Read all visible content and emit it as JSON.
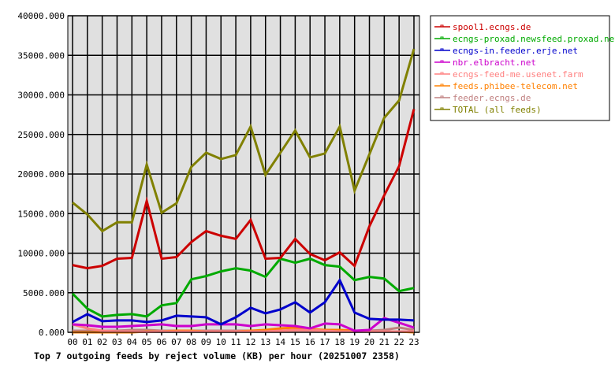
{
  "chart_data": {
    "type": "line",
    "title": "Top 7 outgoing feeds by reject volume (KB) per hour (20251007 2358)",
    "xlabel": "",
    "ylabel": "",
    "ylim": [
      0,
      40000
    ],
    "yticks": [
      "0.000",
      "5000.000",
      "10000.000",
      "15000.000",
      "20000.000",
      "25000.000",
      "30000.000",
      "35000.000",
      "40000.000"
    ],
    "grid": true,
    "legend_placement": "right",
    "categories": [
      "00",
      "01",
      "02",
      "03",
      "04",
      "05",
      "06",
      "07",
      "08",
      "09",
      "10",
      "11",
      "12",
      "13",
      "14",
      "15",
      "16",
      "17",
      "18",
      "19",
      "20",
      "21",
      "22",
      "23"
    ],
    "series": [
      {
        "name": "spool1.ecngs.de",
        "color": "#cc0000",
        "values": [
          8500,
          8100,
          8400,
          9300,
          9400,
          16600,
          9300,
          9500,
          11400,
          12800,
          12200,
          11800,
          14200,
          9300,
          9400,
          11800,
          9900,
          9100,
          10100,
          8400,
          13400,
          17300,
          21000,
          28200
        ]
      },
      {
        "name": "ecngs-proxad.newsfeed.proxad.net",
        "color": "#00aa00",
        "values": [
          4900,
          3000,
          2000,
          2200,
          2300,
          2000,
          3400,
          3700,
          6700,
          7100,
          7700,
          8100,
          7800,
          7000,
          9300,
          8800,
          9300,
          8500,
          8300,
          6600,
          7000,
          6800,
          5200,
          5600
        ]
      },
      {
        "name": "ecngs-in.feeder.erje.net",
        "color": "#0000cc",
        "values": [
          1300,
          2300,
          1400,
          1500,
          1500,
          1300,
          1500,
          2100,
          2000,
          1900,
          1000,
          1900,
          3100,
          2400,
          2900,
          3800,
          2500,
          3800,
          6600,
          2500,
          1700,
          1600,
          1600,
          1500
        ]
      },
      {
        "name": "nbr.elbracht.net",
        "color": "#cc00cc",
        "values": [
          1000,
          900,
          700,
          700,
          800,
          900,
          1000,
          800,
          800,
          1000,
          1000,
          1000,
          800,
          1000,
          900,
          800,
          500,
          1100,
          1000,
          200,
          300,
          1800,
          1200,
          600
        ]
      },
      {
        "name": "ecngs-feed-me.usenet.farm",
        "color": "#ff8080",
        "values": [
          1000,
          500,
          200,
          100,
          100,
          50,
          100,
          100,
          100,
          100,
          100,
          100,
          100,
          100,
          200,
          300,
          300,
          200,
          100,
          100,
          100,
          100,
          100,
          100
        ]
      },
      {
        "name": "feeds.phibee-telecom.net",
        "color": "#ff8000",
        "values": [
          0,
          0,
          0,
          0,
          0,
          100,
          100,
          200,
          200,
          100,
          100,
          100,
          200,
          300,
          500,
          600,
          400,
          300,
          300,
          200,
          100,
          100,
          100,
          0
        ]
      },
      {
        "name": "feeder.ecngs.de",
        "color": "#c08080",
        "values": [
          200,
          200,
          200,
          200,
          300,
          300,
          200,
          200,
          200,
          200,
          200,
          200,
          200,
          200,
          200,
          200,
          200,
          200,
          200,
          200,
          200,
          300,
          600,
          300
        ]
      },
      {
        "name": "TOTAL (all feeds)",
        "color": "#808000",
        "values": [
          16400,
          14900,
          12800,
          13900,
          13900,
          21200,
          15100,
          16300,
          20900,
          22700,
          21900,
          22400,
          26000,
          19900,
          22700,
          25500,
          22100,
          22600,
          26000,
          17900,
          22500,
          27100,
          29300,
          35800
        ]
      }
    ]
  }
}
